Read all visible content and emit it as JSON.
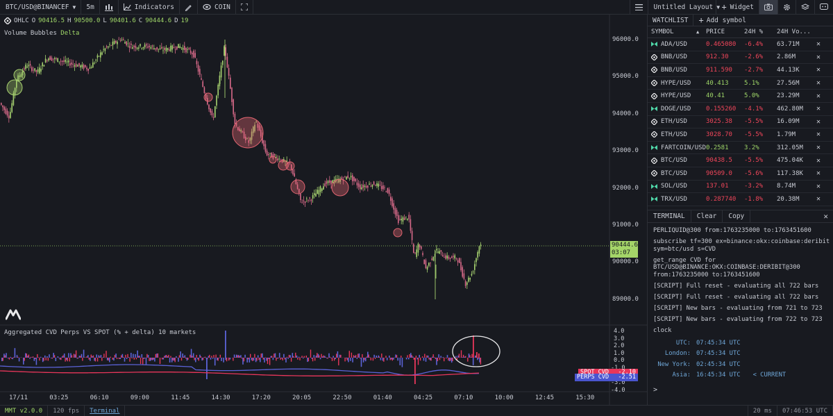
{
  "toolbar": {
    "symbol": "BTC/USD@BINANCEF",
    "timeframe": "5m",
    "indicators": "Indicators",
    "coin": "COIN",
    "layout": "Untitled Layout",
    "widget": "Widget"
  },
  "legend": {
    "ohlc": "OHLC",
    "o_label": "O",
    "o": "90416.5",
    "h_label": "H",
    "h": "90500.0",
    "l_label": "L",
    "l": "90401.6",
    "c_label": "C",
    "c": "90444.6",
    "d_label": "D",
    "d": "19",
    "indicator": "Volume Bubbles",
    "indicator_mode": "Delta"
  },
  "price_axis": [
    "96000.0",
    "95000.0",
    "94000.0",
    "93000.0",
    "92000.0",
    "91000.0",
    "90000.0",
    "89000.0"
  ],
  "last_price": {
    "price": "90444.6",
    "countdown": "03:07"
  },
  "lower_pane": {
    "title": "Aggregated CVD Perps VS SPOT (% + delta) 10 markets",
    "axis": [
      "4.0",
      "3.0",
      "2.0",
      "1.0",
      "0.0",
      "-1.0",
      "-2.0",
      "-3.0",
      "-4.0"
    ],
    "spot_label": "SPOT CVD",
    "spot_value": "-2.10",
    "perps_label": "PERPS CVD",
    "perps_value": "-2.51"
  },
  "time_axis": [
    "17/11",
    "03:25",
    "06:10",
    "09:00",
    "11:45",
    "14:30",
    "17:20",
    "20:05",
    "22:50",
    "01:40",
    "04:25",
    "07:10",
    "10:00",
    "12:45",
    "15:30"
  ],
  "watchlist": {
    "title": "WATCHLIST",
    "add": "Add symbol",
    "columns": [
      "SYMBOL",
      "PRICE",
      "24H %",
      "24H Vo..."
    ],
    "rows": [
      {
        "symbol": "ADA/USD",
        "price": "0.465080",
        "change": "-6.4%",
        "vol": "63.71M",
        "up": false,
        "icon": "exchange-icon"
      },
      {
        "symbol": "BNB/USD",
        "price": "912.30",
        "change": "-2.6%",
        "vol": "2.86M",
        "up": false,
        "icon": "binance-icon"
      },
      {
        "symbol": "BNB/USD",
        "price": "911.590",
        "change": "-2.7%",
        "vol": "44.13K",
        "up": false,
        "icon": "binance-icon"
      },
      {
        "symbol": "HYPE/USD",
        "price": "40.413",
        "change": "5.1%",
        "vol": "27.56M",
        "up": true,
        "icon": "binance-icon"
      },
      {
        "symbol": "HYPE/USD",
        "price": "40.41",
        "change": "5.0%",
        "vol": "23.29M",
        "up": true,
        "icon": "binance-icon"
      },
      {
        "symbol": "DOGE/USD",
        "price": "0.155260",
        "change": "-4.1%",
        "vol": "462.80M",
        "up": false,
        "icon": "exchange-icon"
      },
      {
        "symbol": "ETH/USD",
        "price": "3025.38",
        "change": "-5.5%",
        "vol": "16.09M",
        "up": false,
        "icon": "binance-icon"
      },
      {
        "symbol": "ETH/USD",
        "price": "3028.70",
        "change": "-5.5%",
        "vol": "1.79M",
        "up": false,
        "icon": "binance-icon"
      },
      {
        "symbol": "FARTCOIN/USD",
        "price": "0.2581",
        "change": "3.2%",
        "vol": "312.05M",
        "up": true,
        "icon": "exchange-icon"
      },
      {
        "symbol": "BTC/USD",
        "price": "90438.5",
        "change": "-5.5%",
        "vol": "475.04K",
        "up": false,
        "icon": "binance-icon"
      },
      {
        "symbol": "BTC/USD",
        "price": "90509.0",
        "change": "-5.6%",
        "vol": "117.38K",
        "up": false,
        "icon": "binance-icon"
      },
      {
        "symbol": "SOL/USD",
        "price": "137.01",
        "change": "-3.2%",
        "vol": "8.74M",
        "up": false,
        "icon": "exchange-icon"
      },
      {
        "symbol": "TRX/USD",
        "price": "0.287740",
        "change": "-1.8%",
        "vol": "20.38M",
        "up": false,
        "icon": "exchange-icon"
      }
    ]
  },
  "terminal": {
    "tab": "TERMINAL",
    "clear": "Clear",
    "copy": "Copy",
    "lines": [
      "PERLIQUID@300 from:1763235000 to:1763451600",
      "subscribe tf=300 ex=binance:okx:coinbase:deribit sym=btc/usd s=CVD",
      "get_range CVD for BTC/USD@BINANCE:OKX:COINBASE:DERIBIT@300 from:1763235000 to:1763451600",
      "[SCRIPT] Full reset - evaluating all 722 bars",
      "[SCRIPT] Full reset - evaluating all 722 bars",
      "[SCRIPT] New bars - evaluating from 721 to 723",
      "[SCRIPT] New bars - evaluating from 722 to 723",
      "clock"
    ],
    "clock": [
      {
        "k": "UTC:",
        "v": "07:45:34 UTC",
        "cur": ""
      },
      {
        "k": "London:",
        "v": "07:45:34 UTC",
        "cur": ""
      },
      {
        "k": "New York:",
        "v": "02:45:34 UTC",
        "cur": ""
      },
      {
        "k": "Asia:",
        "v": "16:45:34 UTC",
        "cur": "< CURRENT"
      }
    ],
    "prompt": ">"
  },
  "status": {
    "version": "MMT v2.0.0",
    "fps": "120 fps",
    "terminal": "Terminal",
    "latency": "20 ms",
    "clock": "07:46:53 UTC"
  },
  "colors": {
    "up": "#9fd668",
    "down": "#f0465a",
    "bubble_up": "#a8d270",
    "bubble_down": "#e06470",
    "perps": "#5b63d8",
    "spot": "#e8365a"
  }
}
